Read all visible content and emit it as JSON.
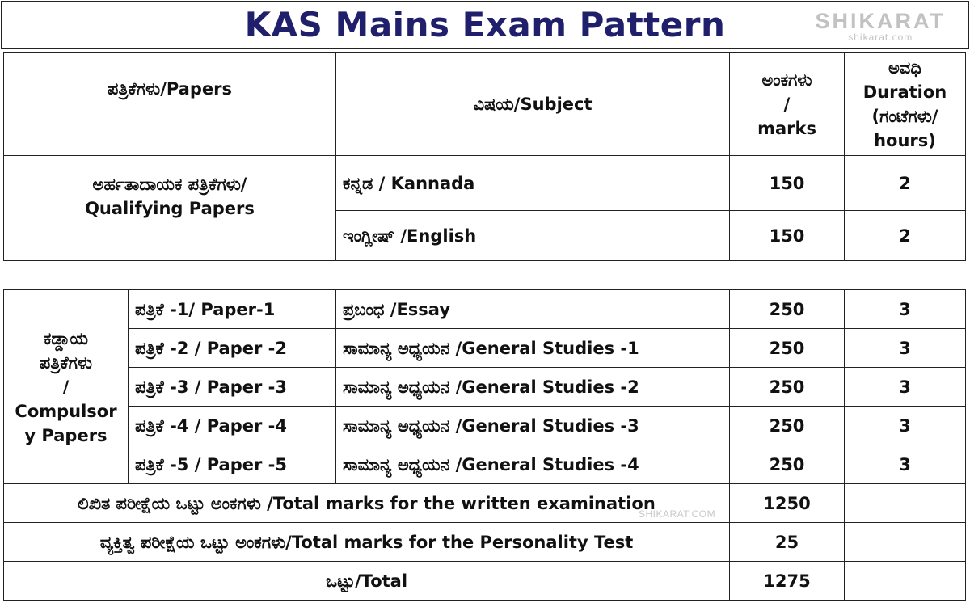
{
  "title": "KAS Mains Exam Pattern",
  "brand": {
    "name": "SHIKARAT",
    "url": "shikarat.com",
    "watermark": "SHIKARAT.COM"
  },
  "table1": {
    "headers": {
      "papers": "ಪತ್ರಿಕೆಗಳು/Papers",
      "subject": "ವಿಷಯ/Subject",
      "marks_line1": "ಅಂಕಗಳು",
      "marks_line2": "/",
      "marks_line3": "marks",
      "duration_line1": "ಅವಧಿ",
      "duration_line2": "Duration",
      "duration_line3": "(ಗಂಟೆಗಳು/",
      "duration_line4": "hours)"
    },
    "qualifying_label_line1": "ಅರ್ಹತಾದಾಯಕ ಪತ್ರಿಕೆಗಳು/",
    "qualifying_label_line2": "Qualifying Papers",
    "rows": [
      {
        "subject": "ಕನ್ನಡ / Kannada",
        "marks": "150",
        "duration": "2"
      },
      {
        "subject": "ಇಂಗ್ಲೀಷ್ /English",
        "marks": "150",
        "duration": "2"
      }
    ]
  },
  "table2": {
    "compulsory_label_line1": "ಕಡ್ಡಾಯ",
    "compulsory_label_line2": "ಪತ್ರಿಕೆಗಳು",
    "compulsory_label_line3": "/",
    "compulsory_label_line4": "Compulsor",
    "compulsory_label_line5": "y Papers",
    "rows": [
      {
        "paper": "ಪತ್ರಿಕೆ -1/ Paper-1",
        "subject": "ಪ್ರಬಂಧ /Essay",
        "marks": "250",
        "duration": "3"
      },
      {
        "paper": "ಪತ್ರಿಕೆ -2 / Paper -2",
        "subject": "ಸಾಮಾನ್ಯ ಅಧ್ಯಯನ /General Studies -1",
        "marks": "250",
        "duration": "3"
      },
      {
        "paper": "ಪತ್ರಿಕೆ -3 / Paper -3",
        "subject": "ಸಾಮಾನ್ಯ ಅಧ್ಯಯನ /General Studies -2",
        "marks": "250",
        "duration": "3"
      },
      {
        "paper": "ಪತ್ರಿಕೆ -4 / Paper -4",
        "subject": "ಸಾಮಾನ್ಯ ಅಧ್ಯಯನ /General Studies -3",
        "marks": "250",
        "duration": "3"
      },
      {
        "paper": "ಪತ್ರಿಕೆ -5 / Paper -5",
        "subject": "ಸಾಮಾನ್ಯ ಅಧ್ಯಯನ /General Studies -4",
        "marks": "250",
        "duration": "3"
      }
    ],
    "totals": [
      {
        "label": "ಲಿಖಿತ ಪರೀಕ್ಷೆಯ ಒಟ್ಟು ಅಂಕಗಳು /Total marks for the written  examination",
        "marks": "1250"
      },
      {
        "label": "ವ್ಯಕ್ತಿತ್ವ ಪರೀಕ್ಷೆಯ ಒಟ್ಟು ಅಂಕಗಳು/Total marks for the Personality Test",
        "marks": "25"
      },
      {
        "label": "ಒಟ್ಟು/Total",
        "marks": "1275"
      }
    ]
  }
}
